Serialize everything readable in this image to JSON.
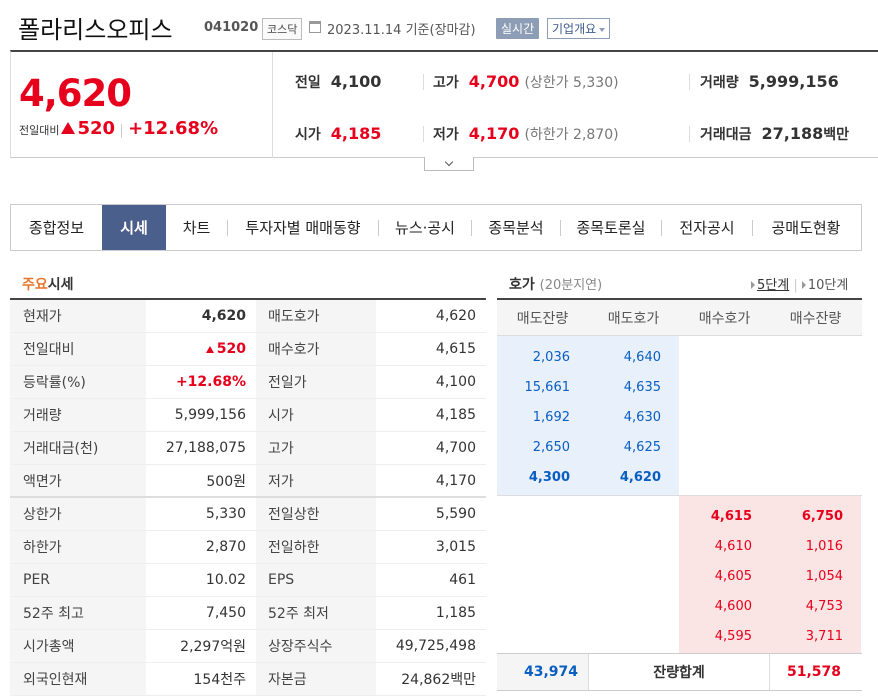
{
  "header": {
    "name": "폴라리스오피스",
    "code": "041020",
    "market": "코스닥",
    "date": "2023.11.14",
    "basis": "기준(장마감)",
    "realtime": "실시간",
    "corp_info": "기업개요"
  },
  "summary": {
    "price": "4,620",
    "change_label": "전일대비",
    "change_amount": "520",
    "change_pct": "+12.68%",
    "prev_label": "전일",
    "prev": "4,100",
    "high_label": "고가",
    "high": "4,700",
    "upper_label": "(상한가",
    "upper": "5,330)",
    "volume_label": "거래량",
    "volume": "5,999,156",
    "open_label": "시가",
    "open": "4,185",
    "low_label": "저가",
    "low": "4,170",
    "lower_label": "(하한가",
    "lower": "2,870)",
    "amount_label": "거래대금",
    "amount": "27,188",
    "amount_unit": "백만"
  },
  "tabs": [
    "종합정보",
    "시세",
    "차트",
    "투자자별 매매동향",
    "뉴스·공시",
    "종목분석",
    "종목토론실",
    "전자공시",
    "공매도현황"
  ],
  "main_quote": {
    "title_a": "주요",
    "title_b": "시세",
    "rows": [
      {
        "k1": "현재가",
        "v1": "4,620",
        "k2": "매도호가",
        "v2": "4,620"
      },
      {
        "k1": "전일대비",
        "v1": "520",
        "k2": "매수호가",
        "v2": "4,615"
      },
      {
        "k1": "등락률(%)",
        "v1": "+12.68%",
        "k2": "전일가",
        "v2": "4,100"
      },
      {
        "k1": "거래량",
        "v1": "5,999,156",
        "k2": "시가",
        "v2": "4,185"
      },
      {
        "k1": "거래대금(천)",
        "v1": "27,188,075",
        "k2": "고가",
        "v2": "4,700"
      },
      {
        "k1": "액면가",
        "v1": "500원",
        "k2": "저가",
        "v2": "4,170"
      },
      {
        "k1": "상한가",
        "v1": "5,330",
        "k2": "전일상한",
        "v2": "5,590"
      },
      {
        "k1": "하한가",
        "v1": "2,870",
        "k2": "전일하한",
        "v2": "3,015"
      },
      {
        "k1": "PER",
        "v1": "10.02",
        "k2": "EPS",
        "v2": "461"
      },
      {
        "k1": "52주 최고",
        "v1": "7,450",
        "k2": "52주 최저",
        "v2": "1,185"
      },
      {
        "k1": "시가총액",
        "v1": "2,297억원",
        "k2": "상장주식수",
        "v2": "49,725,498"
      },
      {
        "k1": "외국인현재",
        "v1": "154천주",
        "k2": "자본금",
        "v2": "24,862백만"
      }
    ]
  },
  "orderbook": {
    "title": "호가",
    "delay": "(20분지연)",
    "link_5": "5단계",
    "link_10": "10단계",
    "headers": [
      "매도잔량",
      "매도호가",
      "매수호가",
      "매수잔량"
    ],
    "asks": [
      {
        "qty": "2,036",
        "price": "4,640"
      },
      {
        "qty": "15,661",
        "price": "4,635"
      },
      {
        "qty": "1,692",
        "price": "4,630"
      },
      {
        "qty": "2,650",
        "price": "4,625"
      },
      {
        "qty": "4,300",
        "price": "4,620"
      }
    ],
    "bids": [
      {
        "price": "4,615",
        "qty": "6,750"
      },
      {
        "price": "4,610",
        "qty": "1,016"
      },
      {
        "price": "4,605",
        "qty": "1,054"
      },
      {
        "price": "4,600",
        "qty": "4,753"
      },
      {
        "price": "4,595",
        "qty": "3,711"
      }
    ],
    "total_ask": "43,974",
    "total_label": "잔량합계",
    "total_bid": "51,578"
  }
}
